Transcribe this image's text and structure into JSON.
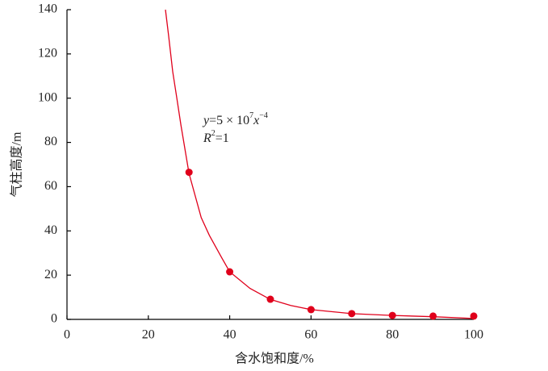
{
  "chart_data": {
    "type": "scatter",
    "xlabel": "含水饱和度/%",
    "ylabel": "气柱高度/m",
    "annotation": {
      "eq": [
        "y",
        "=5 × 10",
        "7",
        "x",
        "−4"
      ],
      "r2": [
        "R",
        "2",
        "=1"
      ]
    },
    "color": "#e0001b",
    "points": {
      "x": [
        30,
        40,
        50,
        60,
        70,
        80,
        90,
        100
      ],
      "values": [
        66.5,
        21.5,
        9.1,
        4.4,
        2.6,
        1.8,
        1.5,
        1.5
      ]
    },
    "fit": {
      "x": [
        24.2,
        25,
        26,
        27,
        28,
        30,
        33,
        35,
        38,
        40,
        45,
        50,
        55,
        60,
        70,
        80,
        90,
        100
      ],
      "values": [
        140,
        128,
        112,
        100,
        88,
        66,
        46,
        38,
        28,
        21.5,
        14,
        9,
        6.3,
        4.4,
        2.6,
        1.8,
        1.2,
        0.4
      ]
    },
    "xlim": [
      0,
      100
    ],
    "xticks": [
      0,
      20,
      40,
      60,
      80,
      100
    ],
    "ylim": [
      0,
      140
    ],
    "yticks": [
      0,
      20,
      40,
      60,
      80,
      100,
      120,
      140
    ],
    "grid": false
  }
}
